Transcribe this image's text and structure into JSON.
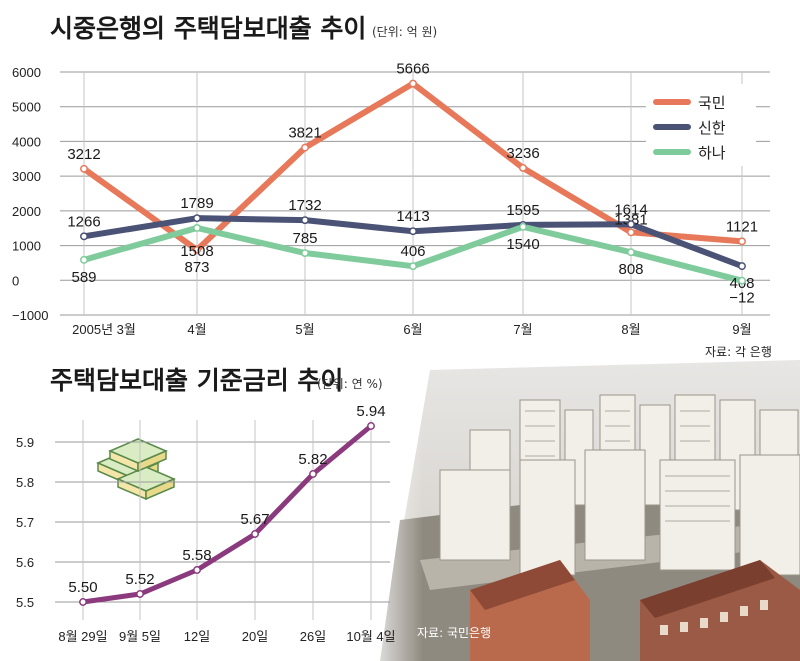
{
  "chart_data": [
    {
      "type": "line",
      "title": "시중은행의 주택담보대출 추이",
      "unit_note": "(단위: 억 원)",
      "categories": [
        "2005년 3월",
        "4월",
        "5월",
        "6월",
        "7월",
        "8월",
        "9월"
      ],
      "series": [
        {
          "name": "국민",
          "color": "#e8785a",
          "values": [
            3212,
            873,
            3821,
            5666,
            3236,
            1381,
            1121
          ],
          "labels": [
            "3212",
            "873",
            "3821",
            "5666",
            "3236",
            "1381",
            "1121"
          ]
        },
        {
          "name": "신한",
          "color": "#4a5275",
          "values": [
            1266,
            1789,
            1732,
            1413,
            1595,
            1614,
            408
          ],
          "labels": [
            "1266",
            "1789",
            "1732",
            "1413",
            "1595",
            "1614",
            "408"
          ]
        },
        {
          "name": "하나",
          "color": "#7fcb9c",
          "values": [
            589,
            1508,
            785,
            406,
            1540,
            808,
            -12
          ],
          "labels": [
            "589",
            "1508",
            "785",
            "406",
            "1540",
            "808",
            "−12"
          ]
        }
      ],
      "y_ticks": [
        "6000",
        "5000",
        "4000",
        "3000",
        "2000",
        "1000",
        "0",
        "−1000"
      ],
      "ylim": [
        -1000,
        6000
      ],
      "grid": true,
      "legend_position": "top-right",
      "source": "자료: 각 은행"
    },
    {
      "type": "line",
      "title": "주택담보대출 기준금리 추이",
      "unit_note": "(단위: 연 %)",
      "categories": [
        "8월 29일",
        "9월 5일",
        "12일",
        "20일",
        "26일",
        "10월 4일"
      ],
      "series": [
        {
          "name": "",
          "color": "#8b3a7e",
          "values": [
            5.5,
            5.52,
            5.58,
            5.67,
            5.82,
            5.94
          ],
          "labels": [
            "5.50",
            "5.52",
            "5.58",
            "5.67",
            "5.82",
            "5.94"
          ]
        }
      ],
      "y_ticks": [
        "5.9",
        "5.8",
        "5.7",
        "5.6",
        "5.5"
      ],
      "ylim": [
        5.45,
        5.95
      ],
      "grid": true,
      "source": "자료: 국민은행"
    }
  ]
}
